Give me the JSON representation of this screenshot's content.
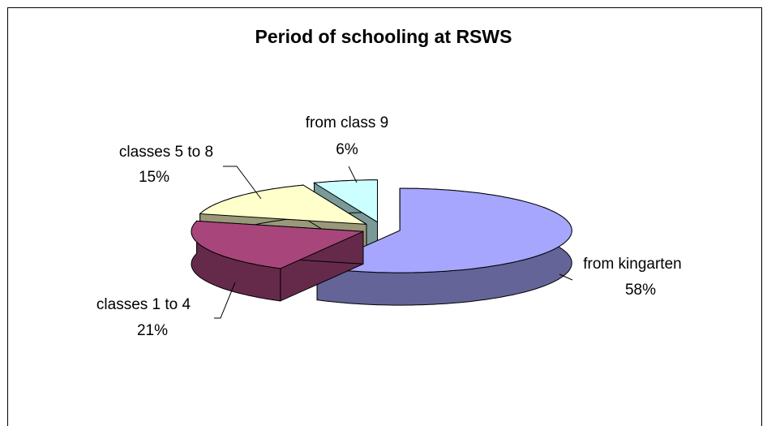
{
  "chart_data": {
    "type": "pie",
    "title": "Period of schooling at RSWS",
    "categories": [
      "from kingarten",
      "classes 1 to 4",
      "classes 5 to 8",
      "from class 9"
    ],
    "values": [
      58,
      21,
      15,
      6
    ],
    "value_labels": [
      "58%",
      "21%",
      "15%",
      "6%"
    ],
    "colors": [
      "#a6a6ff",
      "#a8467c",
      "#ffffcc",
      "#ccffff"
    ],
    "three_d": true,
    "exploded": true
  }
}
